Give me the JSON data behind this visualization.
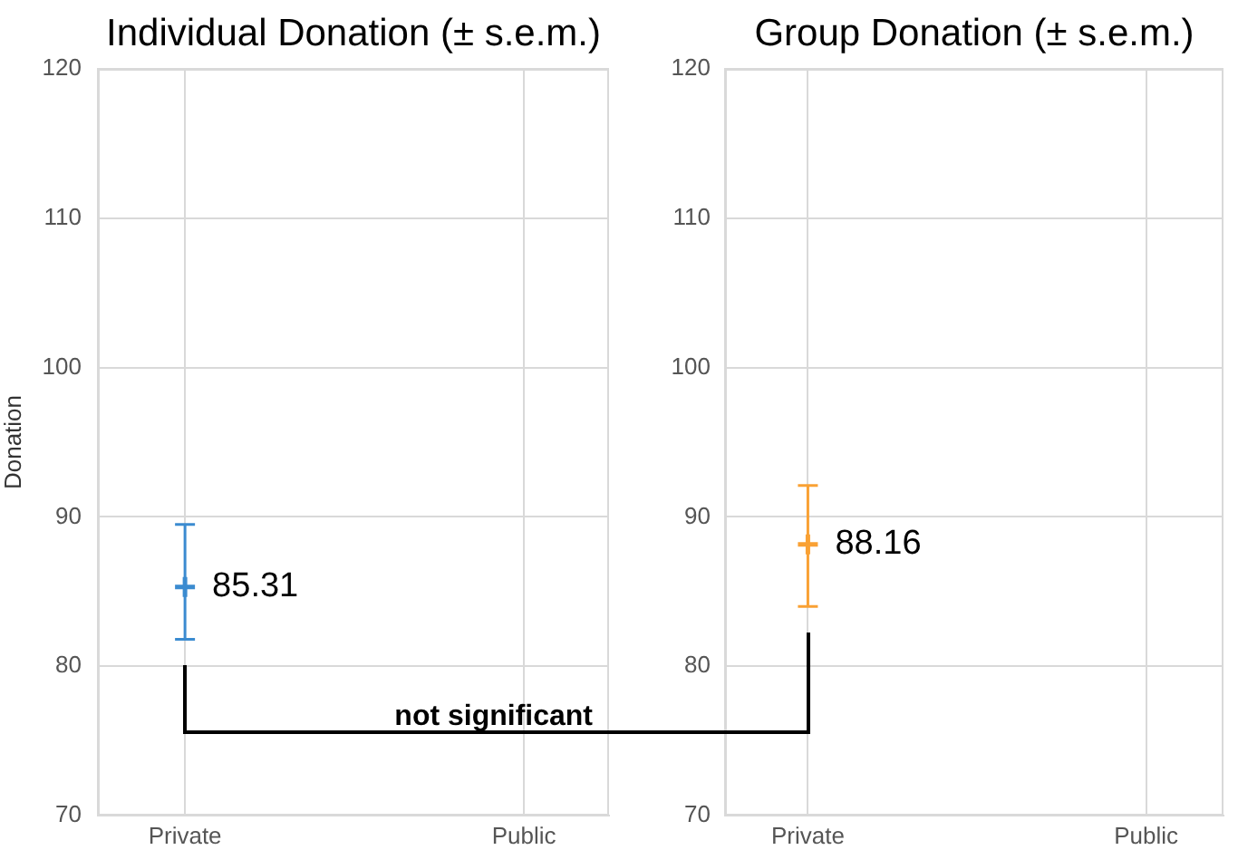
{
  "chart_data": [
    {
      "type": "scatter",
      "title": "Individual Donation (± s.e.m.)",
      "ylabel": "Donation",
      "categories": [
        "Private",
        "Public"
      ],
      "values": [
        85.31,
        null
      ],
      "errors": [
        [
          81.8,
          89.5
        ],
        null
      ],
      "color": "#3b8bd0",
      "marker": "cross",
      "data_labels": true,
      "ylim": [
        70,
        120
      ],
      "yticks": [
        70,
        80,
        90,
        100,
        110,
        120
      ],
      "grid": true,
      "annotations": [
        "not significant"
      ]
    },
    {
      "type": "scatter",
      "title": "Group Donation (± s.e.m.)",
      "categories": [
        "Private",
        "Public"
      ],
      "values": [
        88.16,
        null
      ],
      "errors": [
        [
          84.0,
          92.1
        ],
        null
      ],
      "color": "#f9a134",
      "marker": "cross",
      "data_labels": true,
      "ylim": [
        70,
        120
      ],
      "yticks": [
        70,
        80,
        90,
        100,
        110,
        120
      ],
      "grid": true
    }
  ]
}
